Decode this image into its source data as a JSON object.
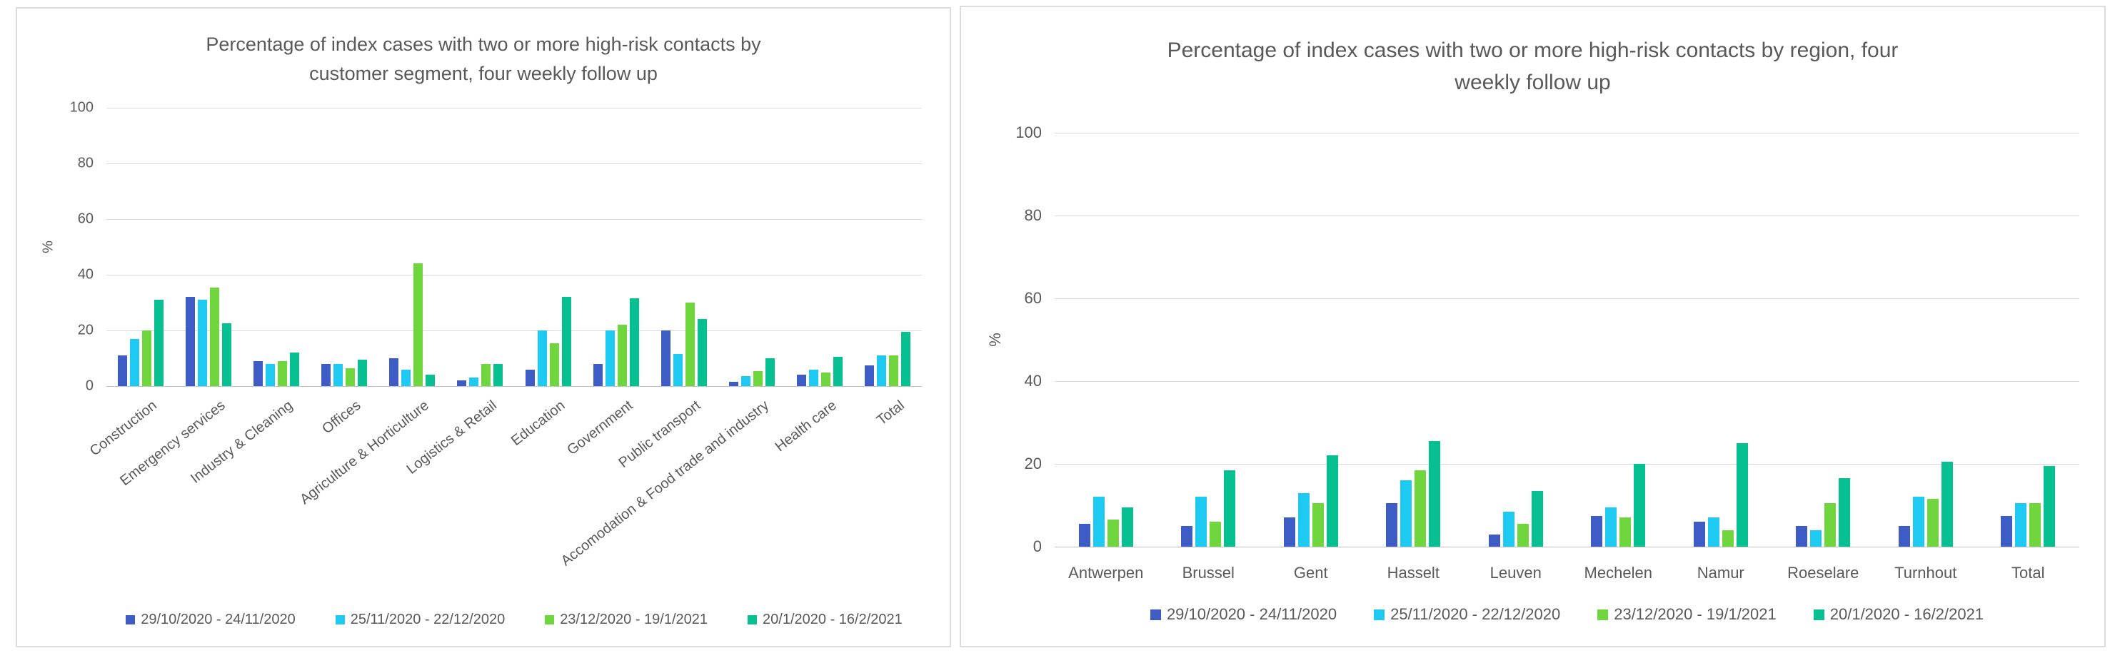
{
  "colors": {
    "series": [
      "#3d5cc6",
      "#1ec9f2",
      "#6fd63e",
      "#07c092"
    ],
    "gridline": "#d9d9d9",
    "text": "#595959",
    "panel_border": "#dcdcdc"
  },
  "legend": {
    "items": [
      {
        "label": "29/10/2020 - 24/11/2020",
        "color": "#3d5cc6"
      },
      {
        "label": "25/11/2020 - 22/12/2020",
        "color": "#1ec9f2"
      },
      {
        "label": "23/12/2020 - 19/1/2021",
        "color": "#6fd63e"
      },
      {
        "label": "20/1/2020 - 16/2/2021",
        "color": "#07c092"
      }
    ]
  },
  "chart_data": [
    {
      "type": "bar",
      "title": "Percentage of index cases with two or more high-risk contacts by customer segment, four weekly follow up",
      "title_lines": [
        "Percentage of index cases with two or more high-risk contacts by",
        "customer segment, four weekly follow up"
      ],
      "xlabel": "",
      "ylabel": "%",
      "ylim": [
        0,
        100
      ],
      "yticks": [
        0,
        20,
        40,
        60,
        80,
        100
      ],
      "grid": true,
      "legend_position": "bottom",
      "categories": [
        "Construction",
        "Emergency services",
        "Industry & Cleaning",
        "Offices",
        "Agriculture & Horticulture",
        "Logistics & Retail",
        "Education",
        "Government",
        "Public transport",
        "Accomodation & Food trade and industry",
        "Health care",
        "Total"
      ],
      "series": [
        {
          "name": "29/10/2020 - 24/11/2020",
          "values": [
            11,
            32,
            9,
            8,
            10,
            2,
            6,
            8,
            20,
            1.5,
            4,
            7.5
          ]
        },
        {
          "name": "25/11/2020 - 22/12/2020",
          "values": [
            17,
            31,
            8,
            8,
            6,
            3,
            20,
            20,
            11.5,
            3.5,
            6,
            11
          ]
        },
        {
          "name": "23/12/2020 - 19/1/2021",
          "values": [
            20,
            35.5,
            9,
            6.5,
            44,
            8,
            15.5,
            22,
            30,
            5.5,
            5,
            11
          ]
        },
        {
          "name": "20/1/2020 - 16/2/2021",
          "values": [
            31,
            22.5,
            12,
            9.5,
            4,
            8,
            32,
            31.5,
            24,
            10,
            10.5,
            19.5
          ]
        }
      ]
    },
    {
      "type": "bar",
      "title": "Percentage of index cases with two or more high-risk contacts by region, four weekly follow up",
      "title_lines": [
        "Percentage of index cases with two or more high-risk contacts by region, four",
        "weekly follow up"
      ],
      "xlabel": "",
      "ylabel": "%",
      "ylim": [
        0,
        100
      ],
      "yticks": [
        0,
        20,
        40,
        60,
        80,
        100
      ],
      "grid": true,
      "legend_position": "bottom",
      "categories": [
        "Antwerpen",
        "Brussel",
        "Gent",
        "Hasselt",
        "Leuven",
        "Mechelen",
        "Namur",
        "Roeselare",
        "Turnhout",
        "Total"
      ],
      "series": [
        {
          "name": "29/10/2020 - 24/11/2020",
          "values": [
            5.5,
            5,
            7,
            10.5,
            3,
            7.5,
            6,
            5,
            5,
            7.5
          ]
        },
        {
          "name": "25/11/2020 - 22/12/2020",
          "values": [
            12,
            12,
            13,
            16,
            8.5,
            9.5,
            7,
            4,
            12,
            10.5
          ]
        },
        {
          "name": "23/12/2020 - 19/1/2021",
          "values": [
            6.5,
            6,
            10.5,
            18.5,
            5.5,
            7,
            4,
            10.5,
            11.5,
            10.5
          ]
        },
        {
          "name": "20/1/2020 - 16/2/2021",
          "values": [
            9.5,
            18.5,
            22,
            25.5,
            13.5,
            20,
            25,
            16.5,
            20.5,
            19.5
          ]
        }
      ]
    }
  ]
}
